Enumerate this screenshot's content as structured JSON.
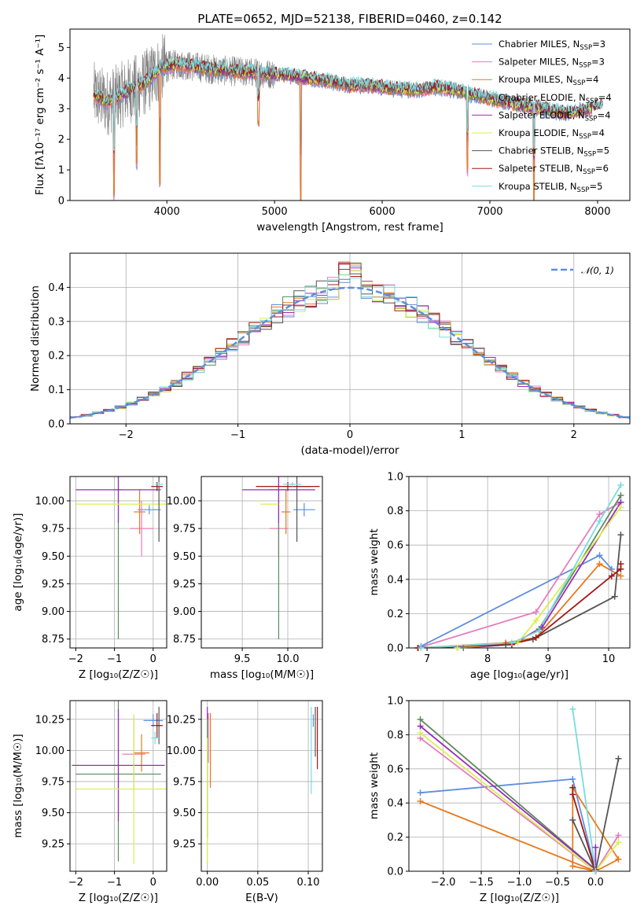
{
  "figure_title": "PLATE=0652, MJD=52138, FIBERID=0460, z=0.142",
  "colors": {
    "chabrier_miles": "#5f8fdc",
    "salpeter_miles": "#e57dbb",
    "kroupa_miles": "#e87a1e",
    "chabrier_elodie": "#5b8a5b",
    "salpeter_elodie": "#9a2bb8",
    "kroupa_elodie": "#d8f04f",
    "chabrier_stelib": "#555555",
    "salpeter_stelib": "#a01818",
    "kroupa_stelib": "#7adbe0",
    "data": "#808080",
    "gauss": "#5f8fdc"
  },
  "chart_data": [
    {
      "id": "spectrum",
      "type": "line",
      "title": "PLATE=0652, MJD=52138, FIBERID=0460, z=0.142",
      "xlabel": "wavelength [Angstrom, rest frame]",
      "ylabel": "Flux [fλ10⁻¹⁷ erg cm⁻² s⁻¹ A⁻¹]",
      "xlim": [
        3100,
        8300
      ],
      "ylim": [
        0,
        5.6
      ],
      "xticks": [
        4000,
        5000,
        6000,
        7000,
        8000
      ],
      "yticks": [
        0,
        1,
        2,
        3,
        4,
        5
      ],
      "legend_position": "top-right",
      "legend": [
        {
          "label": "Chabrier MILES, N",
          "sub": "SSP",
          "suffix": "=3",
          "color_key": "chabrier_miles"
        },
        {
          "label": "Salpeter MILES, N",
          "sub": "SSP",
          "suffix": "=3",
          "color_key": "salpeter_miles"
        },
        {
          "label": "Kroupa MILES, N",
          "sub": "SSP",
          "suffix": "=4",
          "color_key": "kroupa_miles"
        },
        {
          "label": "Chabrier ELODIE, N",
          "sub": "SSP",
          "suffix": "=4",
          "color_key": "chabrier_elodie"
        },
        {
          "label": "Salpeter ELODIE, N",
          "sub": "SSP",
          "suffix": "=4",
          "color_key": "salpeter_elodie"
        },
        {
          "label": "Kroupa ELODIE, N",
          "sub": "SSP",
          "suffix": "=4",
          "color_key": "kroupa_elodie"
        },
        {
          "label": "Chabrier STELIB, N",
          "sub": "SSP",
          "suffix": "=5",
          "color_key": "chabrier_stelib"
        },
        {
          "label": "Salpeter STELIB, N",
          "sub": "SSP",
          "suffix": "=6",
          "color_key": "salpeter_stelib"
        },
        {
          "label": "Kroupa STELIB, N",
          "sub": "SSP",
          "suffix": "=5",
          "color_key": "kroupa_stelib"
        }
      ],
      "continuum": {
        "x": [
          3320,
          3450,
          3600,
          3800,
          3950,
          4100,
          4300,
          4500,
          4700,
          4900,
          5100,
          5300,
          5500,
          5700,
          5900,
          6100,
          6300,
          6500,
          6700,
          6900,
          7100,
          7300,
          7500,
          7700,
          7850,
          8050
        ],
        "y": [
          3.45,
          3.2,
          3.5,
          3.85,
          4.35,
          4.45,
          4.35,
          4.25,
          4.2,
          4.15,
          4.1,
          4.0,
          3.9,
          3.75,
          3.75,
          3.65,
          3.6,
          3.7,
          3.6,
          3.4,
          3.25,
          3.1,
          3.0,
          2.85,
          2.95,
          3.1
        ]
      },
      "absorption_lines": [
        {
          "x": 3510,
          "depth": 3.2
        },
        {
          "x": 3720,
          "depth": 2.5
        },
        {
          "x": 3935,
          "depth": 3.8
        },
        {
          "x": 4850,
          "depth": 1.5
        },
        {
          "x": 5245,
          "depth": 4.0
        },
        {
          "x": 6790,
          "depth": 2.5
        },
        {
          "x": 7410,
          "depth": 3.0
        }
      ]
    },
    {
      "id": "residuals",
      "type": "line",
      "xlabel": "(data-model)/error",
      "ylabel": "Normed distribution",
      "xlim": [
        -2.5,
        2.5
      ],
      "ylim": [
        0,
        0.5
      ],
      "xticks": [
        -2,
        -1,
        0,
        1,
        2
      ],
      "yticks": [
        0.0,
        0.1,
        0.2,
        0.3,
        0.4
      ],
      "legend_position": "top-right",
      "legend": [
        {
          "label": "𝒩(0, 1)",
          "color_key": "gauss"
        }
      ]
    },
    {
      "id": "age_vs_Z",
      "type": "scatter",
      "xlabel": "Z [log₁₀(Z/Z☉)]",
      "ylabel": "age  [log₁₀(age/yr)]",
      "xlim": [
        -2.15,
        0.35
      ],
      "ylim": [
        8.67,
        10.22
      ],
      "xticks": [
        -2,
        -1,
        0
      ],
      "yticks": [
        8.75,
        9.0,
        9.25,
        9.5,
        9.75,
        10.0
      ]
    },
    {
      "id": "age_vs_mass",
      "type": "scatter",
      "xlabel": "mass [log₁₀(M/M☉)]",
      "ylabel": "",
      "xlim": [
        9.05,
        10.38
      ],
      "ylim": [
        8.67,
        10.22
      ],
      "xticks": [
        9.5,
        10.0
      ],
      "yticks": [
        8.75,
        9.0,
        9.25,
        9.5,
        9.75,
        10.0
      ]
    },
    {
      "id": "weight_vs_age",
      "type": "line",
      "xlabel": "age  [log₁₀(age/yr)]",
      "ylabel": "mass weight",
      "xlim": [
        6.7,
        10.35
      ],
      "ylim": [
        0,
        1.0
      ],
      "xticks": [
        7,
        8,
        9,
        10
      ],
      "yticks": [
        0.0,
        0.2,
        0.4,
        0.6,
        0.8,
        1.0
      ],
      "series": [
        {
          "color_key": "chabrier_miles",
          "x": [
            6.9,
            9.85,
            10.05
          ],
          "y": [
            0.01,
            0.54,
            0.46
          ]
        },
        {
          "color_key": "salpeter_miles",
          "x": [
            6.85,
            8.8,
            9.85,
            10.2
          ],
          "y": [
            0.0,
            0.21,
            0.78,
            0.85
          ]
        },
        {
          "color_key": "kroupa_miles",
          "x": [
            6.85,
            8.3,
            8.8,
            9.85,
            10.2
          ],
          "y": [
            0.0,
            0.03,
            0.06,
            0.49,
            0.42
          ]
        },
        {
          "color_key": "chabrier_elodie",
          "x": [
            7.6,
            8.4,
            8.85,
            10.2
          ],
          "y": [
            0.0,
            0.02,
            0.11,
            0.89
          ]
        },
        {
          "color_key": "salpeter_elodie",
          "x": [
            7.5,
            8.4,
            8.9,
            10.2
          ],
          "y": [
            0.0,
            0.02,
            0.12,
            0.85
          ]
        },
        {
          "color_key": "kroupa_elodie",
          "x": [
            7.5,
            8.5,
            8.8,
            10.2
          ],
          "y": [
            0.0,
            0.03,
            0.16,
            0.82
          ]
        },
        {
          "color_key": "chabrier_stelib",
          "x": [
            6.85,
            8.3,
            8.75,
            10.1,
            10.2
          ],
          "y": [
            0.0,
            0.02,
            0.05,
            0.3,
            0.66
          ]
        },
        {
          "color_key": "salpeter_stelib",
          "x": [
            6.85,
            8.4,
            8.8,
            10.05,
            10.2,
            10.2
          ],
          "y": [
            0.0,
            0.02,
            0.06,
            0.42,
            0.46,
            0.49
          ]
        },
        {
          "color_key": "kroupa_stelib",
          "x": [
            6.9,
            8.4,
            8.85,
            9.85,
            10.2
          ],
          "y": [
            0.0,
            0.03,
            0.1,
            0.74,
            0.95
          ]
        }
      ]
    },
    {
      "id": "mass_vs_Z",
      "type": "scatter",
      "xlabel": "Z [log₁₀(Z/Z☉)]",
      "ylabel": "mass [log₁₀(M/M☉)]",
      "xlim": [
        -2.15,
        0.35
      ],
      "ylim": [
        9.03,
        10.4
      ],
      "xticks": [
        -2,
        -1,
        0
      ],
      "yticks": [
        9.25,
        9.5,
        9.75,
        10.0,
        10.25
      ]
    },
    {
      "id": "mass_vs_ebv",
      "type": "scatter",
      "xlabel": "E(B-V)",
      "ylabel": "",
      "xlim": [
        -0.006,
        0.114
      ],
      "ylim": [
        9.03,
        10.4
      ],
      "xticks": [
        0.0,
        0.05,
        0.1
      ],
      "yticks": [
        9.25,
        9.5,
        9.75,
        10.0,
        10.25
      ]
    },
    {
      "id": "weight_vs_Z",
      "type": "line",
      "xlabel": "Z [log₁₀(Z/Z☉)]",
      "ylabel": "mass weight",
      "xlim": [
        -2.45,
        0.45
      ],
      "ylim": [
        0,
        1.0
      ],
      "xticks": [
        -2.0,
        -1.5,
        -1.0,
        -0.5,
        0.0
      ],
      "yticks": [
        0.0,
        0.2,
        0.4,
        0.6,
        0.8,
        1.0
      ],
      "series": [
        {
          "color_key": "chabrier_miles",
          "x": [
            -2.3,
            -0.3,
            0.0
          ],
          "y": [
            0.46,
            0.54,
            0.0
          ]
        },
        {
          "color_key": "salpeter_miles",
          "x": [
            -2.3,
            0.0,
            0.3
          ],
          "y": [
            0.78,
            0.0,
            0.21
          ]
        },
        {
          "color_key": "kroupa_miles",
          "x": [
            -2.3,
            0.0,
            -0.3,
            -0.3,
            0.3,
            0.0
          ],
          "y": [
            0.41,
            0.0,
            0.03,
            0.49,
            0.07,
            0.0
          ]
        },
        {
          "color_key": "chabrier_elodie",
          "x": [
            -2.3,
            0.0
          ],
          "y": [
            0.89,
            0.01
          ]
        },
        {
          "color_key": "salpeter_elodie",
          "x": [
            -2.3,
            0.0,
            0.0
          ],
          "y": [
            0.85,
            0.01,
            0.14
          ]
        },
        {
          "color_key": "kroupa_elodie",
          "x": [
            -2.3,
            0.0,
            0.3
          ],
          "y": [
            0.81,
            0.0,
            0.17
          ]
        },
        {
          "color_key": "chabrier_stelib",
          "x": [
            -0.3,
            0.0,
            0.3
          ],
          "y": [
            0.3,
            0.0,
            0.66
          ]
        },
        {
          "color_key": "salpeter_stelib",
          "x": [
            -0.3,
            -0.3,
            0.0
          ],
          "y": [
            0.49,
            0.45,
            0.0
          ]
        },
        {
          "color_key": "kroupa_stelib",
          "x": [
            -0.3,
            0.0
          ],
          "y": [
            0.95,
            0.0
          ]
        }
      ]
    }
  ],
  "errorbars": {
    "age_vs_Z": [
      {
        "color_key": "chabrier_miles",
        "x": -0.1,
        "y": 9.92,
        "xerr": 0.3,
        "yerr": 0.04
      },
      {
        "color_key": "salpeter_miles",
        "x": -0.3,
        "y": 9.75,
        "xerr": 0.3,
        "yerr": 0.25
      },
      {
        "color_key": "kroupa_miles",
        "x": -0.35,
        "y": 9.9,
        "xerr": 0.15,
        "yerr": 0.2
      },
      {
        "color_key": "chabrier_elodie",
        "x": -0.9,
        "y": 10.1,
        "xerr": 0.1,
        "yerr": 1.35
      },
      {
        "color_key": "salpeter_elodie",
        "x": -0.9,
        "y": 10.1,
        "xerr": 1.1,
        "yerr": 0.3
      },
      {
        "color_key": "kroupa_elodie",
        "x": -0.5,
        "y": 9.97,
        "xerr": 1.5,
        "yerr": 0.0
      },
      {
        "color_key": "chabrier_stelib",
        "x": 0.15,
        "y": 10.13,
        "xerr": 0.05,
        "yerr": 0.5
      },
      {
        "color_key": "salpeter_stelib",
        "x": 0.1,
        "y": 10.13,
        "xerr": 0.15,
        "yerr": 0.04
      },
      {
        "color_key": "kroupa_stelib",
        "x": 0.15,
        "y": 10.15,
        "xerr": 0.1,
        "yerr": 0.02
      }
    ],
    "age_vs_mass": [
      {
        "color_key": "chabrier_miles",
        "x": 10.18,
        "y": 9.92,
        "xerr": 0.12,
        "yerr": 0.06
      },
      {
        "color_key": "salpeter_miles",
        "x": 9.9,
        "y": 9.75,
        "xerr": 0.1,
        "yerr": 0.25
      },
      {
        "color_key": "kroupa_miles",
        "x": 9.98,
        "y": 9.9,
        "xerr": 0.05,
        "yerr": 0.2
      },
      {
        "color_key": "chabrier_elodie",
        "x": 9.9,
        "y": 10.1,
        "xerr": 0.1,
        "yerr": 1.35
      },
      {
        "color_key": "salpeter_elodie",
        "x": 9.9,
        "y": 10.1,
        "xerr": 0.4,
        "yerr": 0.3
      },
      {
        "color_key": "kroupa_elodie",
        "x": 9.8,
        "y": 9.97,
        "xerr": 0.1,
        "yerr": 0.0
      },
      {
        "color_key": "chabrier_stelib",
        "x": 10.1,
        "y": 10.13,
        "xerr": 0.15,
        "yerr": 0.5
      },
      {
        "color_key": "salpeter_stelib",
        "x": 10.0,
        "y": 10.13,
        "xerr": 0.35,
        "yerr": 0.04
      },
      {
        "color_key": "kroupa_stelib",
        "x": 10.05,
        "y": 10.15,
        "xerr": 0.1,
        "yerr": 0.02
      }
    ],
    "mass_vs_Z": [
      {
        "color_key": "chabrier_miles",
        "x": 0.0,
        "y": 10.24,
        "xerr": 0.25,
        "yerr": 0.05
      },
      {
        "color_key": "salpeter_miles",
        "x": -0.5,
        "y": 9.97,
        "xerr": 0.3,
        "yerr": 0.3
      },
      {
        "color_key": "kroupa_miles",
        "x": -0.3,
        "y": 9.98,
        "xerr": 0.2,
        "yerr": 0.15
      },
      {
        "color_key": "chabrier_elodie",
        "x": -0.9,
        "y": 9.81,
        "xerr": 1.1,
        "yerr": 0.7
      },
      {
        "color_key": "salpeter_elodie",
        "x": -0.9,
        "y": 9.88,
        "xerr": 1.2,
        "yerr": 0.45
      },
      {
        "color_key": "kroupa_elodie",
        "x": -0.5,
        "y": 9.69,
        "xerr": 1.5,
        "yerr": 0.6
      },
      {
        "color_key": "chabrier_stelib",
        "x": 0.15,
        "y": 10.2,
        "xerr": 0.05,
        "yerr": 0.15
      },
      {
        "color_key": "salpeter_stelib",
        "x": 0.1,
        "y": 10.2,
        "xerr": 0.15,
        "yerr": 0.1
      },
      {
        "color_key": "kroupa_stelib",
        "x": 0.05,
        "y": 10.1,
        "xerr": 0.1,
        "yerr": 0.05
      }
    ],
    "mass_vs_ebv": [
      {
        "color_key": "chabrier_miles",
        "x": 0.105,
        "y": 10.24,
        "xerr": 0.0,
        "yerr": 0.05
      },
      {
        "color_key": "salpeter_miles",
        "x": 0.001,
        "y": 10.1,
        "xerr": 0.0,
        "yerr": 0.2
      },
      {
        "color_key": "kroupa_miles",
        "x": 0.003,
        "y": 10.0,
        "xerr": 0.0,
        "yerr": 0.3
      },
      {
        "color_key": "chabrier_elodie",
        "x": 0.0,
        "y": 9.8,
        "xerr": 0.0,
        "yerr": 0.5
      },
      {
        "color_key": "salpeter_elodie",
        "x": 0.0,
        "y": 10.3,
        "xerr": 0.0,
        "yerr": 0.05
      },
      {
        "color_key": "kroupa_elodie",
        "x": 0.0,
        "y": 9.6,
        "xerr": 0.0,
        "yerr": 0.5
      },
      {
        "color_key": "chabrier_stelib",
        "x": 0.107,
        "y": 10.15,
        "xerr": 0.0,
        "yerr": 0.2
      },
      {
        "color_key": "salpeter_stelib",
        "x": 0.109,
        "y": 10.1,
        "xerr": 0.0,
        "yerr": 0.25
      },
      {
        "color_key": "kroupa_stelib",
        "x": 0.103,
        "y": 10.0,
        "xerr": 0.0,
        "yerr": 0.35
      }
    ]
  }
}
